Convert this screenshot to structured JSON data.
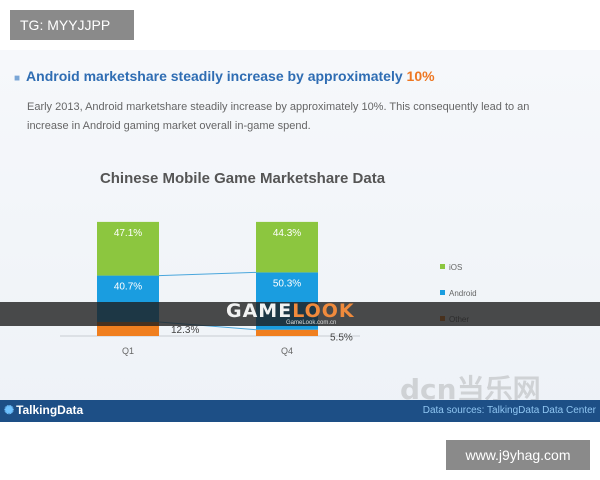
{
  "overlay": {
    "tg_label": "TG: MYYJJPP",
    "url_label": "www.j9yhag.com",
    "gamelook_main": "GAME",
    "gamelook_accent": "LOOK",
    "gamelook_sub": "GameLook.com.cn",
    "dcn_mark": "dcn当乐网"
  },
  "slide": {
    "headline_prefix": "Android marketshare steadily increase by approximately ",
    "headline_accent": "10%",
    "paragraph": "Early 2013, Android marketshare steadily increase by approximately 10%. This consequently lead to an increase in Android gaming market overall in-game spend.",
    "footer_logo": "TalkingData",
    "footer_source": "Data sources: TalkingData Data Center"
  },
  "colors": {
    "ios": "#8cc63f",
    "android": "#1a9de0",
    "other": "#f07f1f",
    "connector": "#4aa6dc"
  },
  "chart_data": {
    "type": "bar",
    "stacked": true,
    "title": "Chinese Mobile Game Marketshare Data",
    "categories": [
      "Q1",
      "Q4"
    ],
    "series": [
      {
        "name": "iOS",
        "values": [
          47.1,
          44.3
        ],
        "labels": [
          "47.1%",
          "44.3%"
        ]
      },
      {
        "name": "Android",
        "values": [
          40.7,
          50.3
        ],
        "labels": [
          "40.7%",
          "50.3%"
        ]
      },
      {
        "name": "Other",
        "values": [
          12.3,
          5.5
        ],
        "labels": [
          "12.3%",
          "5.5%"
        ]
      }
    ],
    "ylim": [
      0,
      100
    ],
    "legend": "right"
  }
}
